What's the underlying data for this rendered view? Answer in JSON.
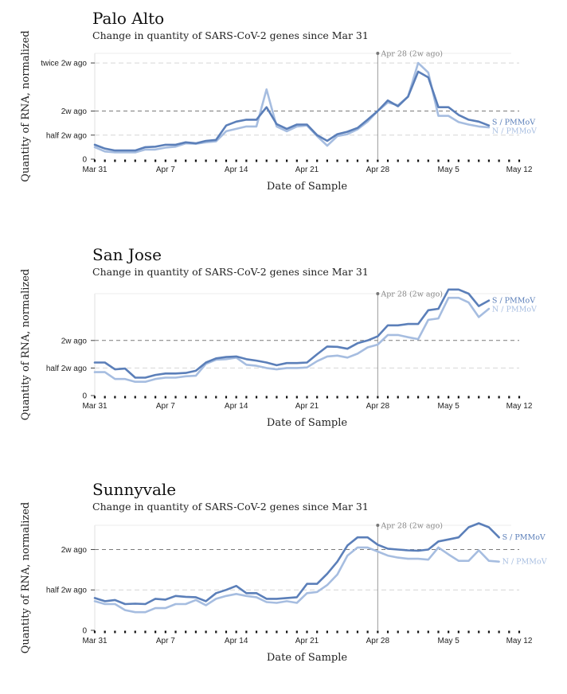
{
  "chart_data": [
    {
      "type": "line",
      "title": "Palo Alto",
      "subtitle": "Change in quantity of SARS-CoV-2 genes since Mar 31",
      "xlabel": "Date of Sample",
      "ylabel": "Quantity of RNA, normalized",
      "x_start": "2020-03-31",
      "xlim": [
        "2020-03-31",
        "2020-05-12"
      ],
      "xticks": [
        "Mar 31",
        "Apr 7",
        "Apr 14",
        "Apr 21",
        "Apr 28",
        "May 5",
        "May 12"
      ],
      "ylim": [
        0,
        2.2
      ],
      "yticks": [
        {
          "label": "0",
          "value": 0
        },
        {
          "label": "half 2w ago",
          "value": 0.5
        },
        {
          "label": "2w ago",
          "value": 1.0
        },
        {
          "label": "twice 2w ago",
          "value": 2.0
        }
      ],
      "reference_label": "2w ago",
      "marker": {
        "label": "Apr 28 (2w ago)",
        "day": 28
      },
      "days": [
        0,
        1,
        2,
        3,
        4,
        5,
        6,
        7,
        8,
        9,
        10,
        11,
        12,
        13,
        14,
        15,
        16,
        17,
        18,
        19,
        20,
        21,
        22,
        23,
        24,
        25,
        26,
        27,
        28,
        29,
        30,
        31,
        32,
        33,
        34,
        35,
        36,
        37,
        38,
        39,
        40
      ],
      "series": [
        {
          "name": "S / PMMoV",
          "color": "#5b7fb9",
          "values": [
            0.3,
            0.22,
            0.18,
            0.18,
            0.18,
            0.25,
            0.26,
            0.3,
            0.3,
            0.35,
            0.33,
            0.38,
            0.4,
            0.7,
            0.78,
            0.82,
            0.82,
            1.08,
            0.73,
            0.63,
            0.72,
            0.72,
            0.5,
            0.38,
            0.52,
            0.57,
            0.65,
            0.82,
            1.0,
            1.22,
            1.1,
            1.3,
            1.82,
            1.7,
            1.08,
            1.08,
            0.92,
            0.82,
            0.78,
            0.7,
            null
          ]
        },
        {
          "name": "N / PMMoV",
          "color": "#a6bde0",
          "values": [
            0.25,
            0.16,
            0.14,
            0.14,
            0.14,
            0.2,
            0.2,
            0.24,
            0.26,
            0.33,
            0.32,
            0.35,
            0.37,
            0.58,
            0.63,
            0.68,
            0.68,
            1.45,
            0.68,
            0.58,
            0.68,
            0.7,
            0.48,
            0.28,
            0.48,
            0.52,
            0.62,
            0.78,
            1.0,
            1.18,
            1.12,
            1.3,
            2.0,
            1.8,
            0.9,
            0.9,
            0.77,
            0.72,
            0.68,
            0.66,
            null
          ]
        }
      ]
    },
    {
      "type": "line",
      "title": "San Jose",
      "subtitle": "Change in quantity of SARS-CoV-2 genes since Mar 31",
      "xlabel": "Date of Sample",
      "ylabel": "Quantity of RNA, normalized",
      "x_start": "2020-03-31",
      "xlim": [
        "2020-03-31",
        "2020-05-12"
      ],
      "xticks": [
        "Mar 31",
        "Apr 7",
        "Apr 14",
        "Apr 21",
        "Apr 28",
        "May 5",
        "May 12"
      ],
      "ylim": [
        0,
        3.7
      ],
      "yticks": [
        {
          "label": "0",
          "value": 0
        },
        {
          "label": "half 2w ago",
          "value": 1.0
        },
        {
          "label": "2w ago",
          "value": 2.0
        }
      ],
      "reference_label": "2w ago",
      "marker": {
        "label": "Apr 28 (2w ago)",
        "day": 28
      },
      "days": [
        0,
        1,
        2,
        3,
        4,
        5,
        6,
        7,
        8,
        9,
        10,
        11,
        12,
        13,
        14,
        15,
        16,
        17,
        18,
        19,
        20,
        21,
        22,
        23,
        24,
        25,
        26,
        27,
        28,
        29,
        30,
        31,
        32,
        33,
        34,
        35,
        36,
        37,
        38,
        39,
        40
      ],
      "series": [
        {
          "name": "S / PMMoV",
          "color": "#5b7fb9",
          "values": [
            1.2,
            1.2,
            0.95,
            0.98,
            0.65,
            0.65,
            0.75,
            0.8,
            0.8,
            0.82,
            0.9,
            1.2,
            1.35,
            1.4,
            1.42,
            1.32,
            1.27,
            1.2,
            1.1,
            1.18,
            1.18,
            1.2,
            1.5,
            1.78,
            1.77,
            1.7,
            1.9,
            2.0,
            2.15,
            2.55,
            2.55,
            2.6,
            2.6,
            3.1,
            3.15,
            3.85,
            3.85,
            3.7,
            3.25,
            3.45,
            null
          ]
        },
        {
          "name": "N / PMMoV",
          "color": "#a6bde0",
          "values": [
            0.85,
            0.85,
            0.6,
            0.6,
            0.5,
            0.5,
            0.6,
            0.65,
            0.65,
            0.7,
            0.72,
            1.15,
            1.3,
            1.32,
            1.38,
            1.12,
            1.08,
            1.0,
            0.95,
            1.0,
            1.0,
            1.02,
            1.25,
            1.42,
            1.45,
            1.38,
            1.52,
            1.75,
            1.85,
            2.2,
            2.2,
            2.12,
            2.05,
            2.75,
            2.8,
            3.55,
            3.55,
            3.38,
            2.85,
            3.15,
            null
          ]
        }
      ]
    },
    {
      "type": "line",
      "title": "Sunnyvale",
      "subtitle": "Change in quantity of SARS-CoV-2 genes since Mar 31",
      "xlabel": "Date of Sample",
      "ylabel": "Quantity of RNA, normalized",
      "x_start": "2020-03-31",
      "xlim": [
        "2020-03-31",
        "2020-05-12"
      ],
      "xticks": [
        "Mar 31",
        "Apr 7",
        "Apr 14",
        "Apr 21",
        "Apr 28",
        "May 5",
        "May 12"
      ],
      "ylim": [
        0,
        2.6
      ],
      "yticks": [
        {
          "label": "0",
          "value": 0
        },
        {
          "label": "half 2w ago",
          "value": 1.0
        },
        {
          "label": "2w ago",
          "value": 2.0
        }
      ],
      "reference_label": "2w ago",
      "marker": {
        "label": "Apr 28 (2w ago)",
        "day": 28
      },
      "days": [
        0,
        1,
        2,
        3,
        4,
        5,
        6,
        7,
        8,
        9,
        10,
        11,
        12,
        13,
        14,
        15,
        16,
        17,
        18,
        19,
        20,
        21,
        22,
        23,
        24,
        25,
        26,
        27,
        28,
        29,
        30,
        31,
        32,
        33,
        34,
        35,
        36,
        37,
        38,
        39,
        40
      ],
      "series": [
        {
          "name": "S / PMMoV",
          "color": "#5b7fb9",
          "values": [
            0.8,
            0.72,
            0.75,
            0.65,
            0.66,
            0.65,
            0.78,
            0.76,
            0.85,
            0.83,
            0.82,
            0.72,
            0.92,
            1.0,
            1.1,
            0.92,
            0.92,
            0.78,
            0.78,
            0.8,
            0.82,
            1.15,
            1.15,
            1.4,
            1.7,
            2.1,
            2.3,
            2.3,
            2.12,
            2.02,
            2.0,
            1.98,
            1.97,
            2.0,
            2.2,
            2.25,
            2.3,
            2.55,
            2.65,
            2.55,
            2.3
          ]
        },
        {
          "name": "N / PMMoV",
          "color": "#a6bde0",
          "values": [
            0.72,
            0.65,
            0.65,
            0.5,
            0.45,
            0.45,
            0.55,
            0.55,
            0.65,
            0.65,
            0.75,
            0.62,
            0.78,
            0.85,
            0.9,
            0.85,
            0.82,
            0.7,
            0.68,
            0.72,
            0.68,
            0.92,
            0.95,
            1.12,
            1.38,
            1.85,
            2.05,
            2.05,
            1.95,
            1.85,
            1.8,
            1.77,
            1.77,
            1.75,
            2.05,
            1.88,
            1.72,
            1.72,
            1.98,
            1.72,
            1.7
          ]
        }
      ]
    }
  ]
}
